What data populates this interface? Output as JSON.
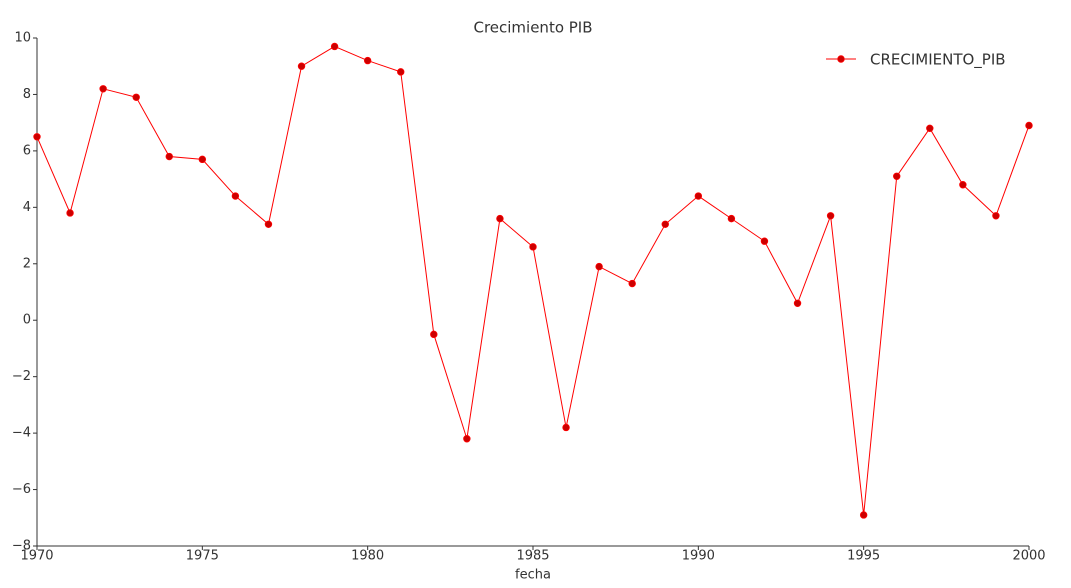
{
  "chart_data": {
    "type": "line",
    "title": "Crecimiento PIB",
    "x_label": "fecha",
    "x": [
      1970,
      1971,
      1972,
      1973,
      1974,
      1975,
      1976,
      1977,
      1978,
      1979,
      1980,
      1981,
      1982,
      1983,
      1984,
      1985,
      1986,
      1987,
      1988,
      1989,
      1990,
      1991,
      1992,
      1993,
      1994,
      1995,
      1996,
      1997,
      1998,
      1999,
      2000
    ],
    "series": [
      {
        "name": "CRECIMIENTO_PIB",
        "color": "#ff0000",
        "marker_color": "#cc0000",
        "values": [
          6.5,
          3.8,
          8.2,
          7.9,
          5.8,
          5.7,
          4.4,
          3.4,
          9.0,
          9.7,
          9.2,
          8.8,
          -0.5,
          -4.2,
          3.6,
          2.6,
          -3.8,
          1.9,
          1.3,
          3.4,
          4.4,
          3.6,
          2.8,
          0.6,
          3.7,
          -6.9,
          5.1,
          6.8,
          4.8,
          3.7,
          6.9
        ]
      }
    ],
    "xlim": [
      1970,
      2000
    ],
    "xticks": [
      1970,
      1975,
      1980,
      1985,
      1990,
      1995,
      2000
    ],
    "ylim": [
      -8,
      10
    ],
    "yticks": [
      {
        "value": -8,
        "label": "−8"
      },
      {
        "value": -6,
        "label": "−6"
      },
      {
        "value": -4,
        "label": "−4"
      },
      {
        "value": -2,
        "label": "−2"
      },
      0,
      2,
      4,
      6,
      8,
      10
    ],
    "grid": false,
    "legend_position": "upper right"
  }
}
